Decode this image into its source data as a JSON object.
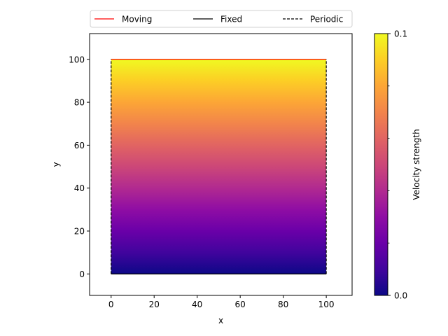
{
  "chart_data": {
    "type": "heatmap",
    "title": "",
    "xlabel": "x",
    "ylabel": "y",
    "xlim": [
      -10,
      112
    ],
    "ylim": [
      -10,
      112
    ],
    "xticks": [
      0,
      20,
      40,
      60,
      80,
      100
    ],
    "yticks": [
      0,
      20,
      40,
      60,
      80,
      100
    ],
    "grid": false,
    "domain": {
      "x": [
        0,
        100
      ],
      "y": [
        0,
        100
      ]
    },
    "field": {
      "description": "velocity strength increases with y; roughly linear profile from 0 at bottom (y=0) to 0.1 at top (y=100)",
      "y": [
        0,
        10,
        20,
        30,
        40,
        50,
        60,
        70,
        80,
        90,
        100
      ],
      "values": [
        0.0,
        0.01,
        0.02,
        0.03,
        0.04,
        0.05,
        0.06,
        0.07,
        0.08,
        0.09,
        0.1
      ]
    },
    "colormap": "plasma",
    "colorbar": {
      "label": "Velocity strength",
      "range": [
        0.0,
        0.1
      ],
      "tick_labels": [
        "0.0",
        "0.1"
      ],
      "minor_ticks": 4
    },
    "boundaries": [
      {
        "name": "Moving",
        "style": "solid",
        "color": "#ff0000",
        "edge": "top"
      },
      {
        "name": "Fixed",
        "style": "solid",
        "color": "#000000",
        "edge": "bottom"
      },
      {
        "name": "Periodic",
        "style": "dashed",
        "color": "#000000",
        "edge": "left-right"
      }
    ],
    "legend": {
      "placement": "top-center",
      "ncol": 3
    }
  }
}
